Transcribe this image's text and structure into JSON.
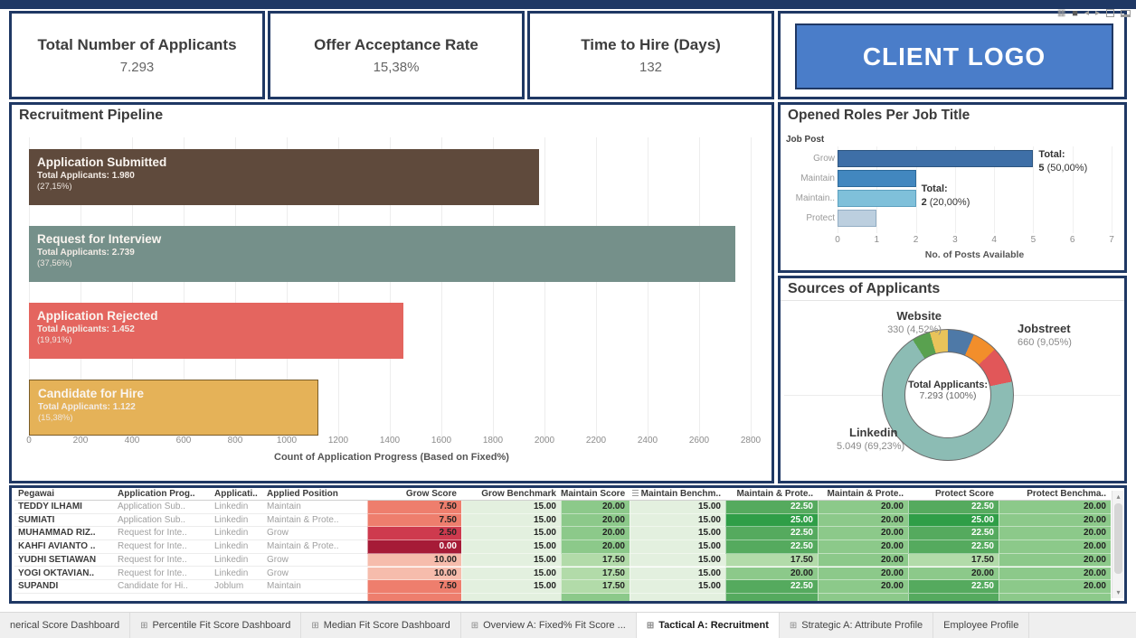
{
  "kpis": [
    {
      "label": "Total Number of Applicants",
      "value": "7.293"
    },
    {
      "label": "Offer Acceptance Rate",
      "value": "15,38%"
    },
    {
      "label": "Time to Hire (Days)",
      "value": "132"
    }
  ],
  "client_logo": {
    "text": "CLIENT LOGO",
    "bg": "#4a7dc9"
  },
  "pipeline": {
    "title": "Recruitment Pipeline",
    "axis_title": "Count of Application Progress (Based on Fixed%)",
    "axis_max": 2800,
    "axis_ticks": [
      0,
      200,
      400,
      600,
      800,
      1000,
      1200,
      1400,
      1600,
      1800,
      2000,
      2200,
      2400,
      2600,
      2800
    ],
    "stages": [
      {
        "name": "Application Submitted",
        "total": "Total Applicants: 1.980",
        "pct": "(27,15%)",
        "value": 1980,
        "color": "#5f4a3c"
      },
      {
        "name": "Request for Interview",
        "total": "Total Applicants: 2.739",
        "pct": "(37,56%)",
        "value": 2739,
        "color": "#75908a"
      },
      {
        "name": "Application Rejected",
        "total": "Total Applicants: 1.452",
        "pct": "(19,91%)",
        "value": 1452,
        "color": "#e4655f"
      },
      {
        "name": "Candidate for Hire",
        "total": "Total Applicants: 1.122",
        "pct": "(15,38%)",
        "value": 1122,
        "color": "#e5b258",
        "border": "#7a5c28"
      }
    ]
  },
  "opened_roles": {
    "title": "Opened Roles Per Job Title",
    "y_header": "Job Post",
    "axis_title": "No. of Posts Available",
    "axis_max": 7,
    "axis_ticks": [
      0,
      1,
      2,
      3,
      4,
      5,
      6,
      7
    ],
    "bars": [
      {
        "label": "Grow",
        "value": 5,
        "color": "#3e6fa7",
        "edge": "#2d5580",
        "note_line1": "Total:",
        "note_bold": "5",
        "note_rest": " (50,00%)"
      },
      {
        "label": "Maintain",
        "value": 2,
        "color": "#4287bf",
        "edge": "#2d6a9a"
      },
      {
        "label": "Maintain..",
        "value": 2,
        "color": "#7fc0da",
        "edge": "#5da0bf",
        "note_line1": "Total:",
        "note_bold": "2",
        "note_rest": " (20,00%)"
      },
      {
        "label": "Protect",
        "value": 1,
        "color": "#bccfdf",
        "edge": "#93aec4"
      }
    ]
  },
  "sources": {
    "title": "Sources of Applicants",
    "center_line1": "Total Applicants:",
    "center_line2": "7.293 (100%)",
    "slices": [
      {
        "name": "unlabeled-blue",
        "color": "#4e79a7",
        "pct": 6.5
      },
      {
        "name": "unlabeled-orange",
        "color": "#f28e2b",
        "pct": 6.2
      },
      {
        "name": "jobstreet",
        "color": "#e15759",
        "pct": 9.05
      },
      {
        "name": "linkedin",
        "color": "#8cbcb4",
        "pct": 69.23
      },
      {
        "name": "website",
        "color": "#59a14f",
        "pct": 4.52
      },
      {
        "name": "unlabeled-yellow",
        "color": "#e8c35a",
        "pct": 4.5
      }
    ],
    "labels": [
      {
        "name": "Website",
        "value": "330 (4,52%)"
      },
      {
        "name": "Jobstreet",
        "value": "660 (9,05%)"
      },
      {
        "name": "Linkedin",
        "value": "5.049 (69,23%)"
      }
    ]
  },
  "table": {
    "text_headers": [
      "Pegawai",
      "Application Prog..",
      "Applicati..",
      "Applied Position"
    ],
    "num_headers": [
      "Grow Score",
      "Grow Benchmark",
      "Maintain Score",
      "Maintain Benchm..",
      "Maintain & Prote..",
      "Maintain & Prote..",
      "Protect Score",
      "Protect Benchma.."
    ],
    "rows": [
      {
        "name": "TEDDY ILHAMI",
        "progress": "Application Sub..",
        "source": "Linkedin",
        "position": "Maintain",
        "cells": [
          {
            "v": "7.50",
            "bg": "#ee7e6d"
          },
          {
            "v": "15.00",
            "bg": "#e3f0df"
          },
          {
            "v": "20.00",
            "bg": "#8cc98a"
          },
          {
            "v": "15.00",
            "bg": "#e3f0df"
          },
          {
            "v": "22.50",
            "bg": "#55aa5e",
            "light": true
          },
          {
            "v": "20.00",
            "bg": "#8cc98a"
          },
          {
            "v": "22.50",
            "bg": "#55aa5e",
            "light": true
          },
          {
            "v": "20.00",
            "bg": "#8cc98a"
          }
        ]
      },
      {
        "name": "SUMIATI",
        "progress": "Application Sub..",
        "source": "Linkedin",
        "position": "Maintain & Prote..",
        "cells": [
          {
            "v": "7.50",
            "bg": "#ee7e6d"
          },
          {
            "v": "15.00",
            "bg": "#e3f0df"
          },
          {
            "v": "20.00",
            "bg": "#8cc98a"
          },
          {
            "v": "15.00",
            "bg": "#e3f0df"
          },
          {
            "v": "25.00",
            "bg": "#2f9e47",
            "light": true
          },
          {
            "v": "20.00",
            "bg": "#8cc98a"
          },
          {
            "v": "25.00",
            "bg": "#2f9e47",
            "light": true
          },
          {
            "v": "20.00",
            "bg": "#8cc98a"
          }
        ]
      },
      {
        "name": "MUHAMMAD RIZ..",
        "progress": "Request for Inte..",
        "source": "Linkedin",
        "position": "Grow",
        "cells": [
          {
            "v": "2.50",
            "bg": "#ce3a4e"
          },
          {
            "v": "15.00",
            "bg": "#e3f0df"
          },
          {
            "v": "20.00",
            "bg": "#8cc98a"
          },
          {
            "v": "15.00",
            "bg": "#e3f0df"
          },
          {
            "v": "22.50",
            "bg": "#55aa5e",
            "light": true
          },
          {
            "v": "20.00",
            "bg": "#8cc98a"
          },
          {
            "v": "22.50",
            "bg": "#55aa5e",
            "light": true
          },
          {
            "v": "20.00",
            "bg": "#8cc98a"
          }
        ]
      },
      {
        "name": "KAHFI AVIANTO ..",
        "progress": "Request for Inte..",
        "source": "Linkedin",
        "position": "Maintain & Prote..",
        "cells": [
          {
            "v": "0.00",
            "bg": "#a61b37",
            "light": true
          },
          {
            "v": "15.00",
            "bg": "#e3f0df"
          },
          {
            "v": "20.00",
            "bg": "#8cc98a"
          },
          {
            "v": "15.00",
            "bg": "#e3f0df"
          },
          {
            "v": "22.50",
            "bg": "#55aa5e",
            "light": true
          },
          {
            "v": "20.00",
            "bg": "#8cc98a"
          },
          {
            "v": "22.50",
            "bg": "#55aa5e",
            "light": true
          },
          {
            "v": "20.00",
            "bg": "#8cc98a"
          }
        ]
      },
      {
        "name": "YUDHI SETIAWAN",
        "progress": "Request for Inte..",
        "source": "Linkedin",
        "position": "Grow",
        "cells": [
          {
            "v": "10.00",
            "bg": "#f6bcac"
          },
          {
            "v": "15.00",
            "bg": "#e3f0df"
          },
          {
            "v": "17.50",
            "bg": "#b2dba9"
          },
          {
            "v": "15.00",
            "bg": "#e3f0df"
          },
          {
            "v": "17.50",
            "bg": "#b2dba9"
          },
          {
            "v": "20.00",
            "bg": "#8cc98a"
          },
          {
            "v": "17.50",
            "bg": "#b2dba9"
          },
          {
            "v": "20.00",
            "bg": "#8cc98a"
          }
        ]
      },
      {
        "name": "YOGI OKTAVIAN..",
        "progress": "Request for Inte..",
        "source": "Linkedin",
        "position": "Grow",
        "cells": [
          {
            "v": "10.00",
            "bg": "#f6bcac"
          },
          {
            "v": "15.00",
            "bg": "#e3f0df"
          },
          {
            "v": "17.50",
            "bg": "#b2dba9"
          },
          {
            "v": "15.00",
            "bg": "#e3f0df"
          },
          {
            "v": "20.00",
            "bg": "#8cc98a"
          },
          {
            "v": "20.00",
            "bg": "#8cc98a"
          },
          {
            "v": "20.00",
            "bg": "#8cc98a"
          },
          {
            "v": "20.00",
            "bg": "#8cc98a"
          }
        ]
      },
      {
        "name": "SUPANDI",
        "progress": "Candidate for Hi..",
        "source": "Joblum",
        "position": "Maintain",
        "cells": [
          {
            "v": "7.50",
            "bg": "#ee7e6d"
          },
          {
            "v": "15.00",
            "bg": "#e3f0df"
          },
          {
            "v": "17.50",
            "bg": "#b2dba9"
          },
          {
            "v": "15.00",
            "bg": "#e3f0df"
          },
          {
            "v": "22.50",
            "bg": "#55aa5e",
            "light": true
          },
          {
            "v": "20.00",
            "bg": "#8cc98a"
          },
          {
            "v": "22.50",
            "bg": "#55aa5e",
            "light": true
          },
          {
            "v": "20.00",
            "bg": "#8cc98a"
          }
        ]
      }
    ],
    "partial_row_bg": [
      "#ee7e6d",
      "#e3f0df",
      "#8cc98a",
      "#e3f0df",
      "#55aa5e",
      "#8cc98a",
      "#55aa5e",
      "#8cc98a"
    ]
  },
  "tabs": [
    {
      "label": "nerical Score Dashboard",
      "icon": false,
      "active": false
    },
    {
      "label": "Percentile Fit Score Dashboard",
      "icon": true,
      "active": false
    },
    {
      "label": "Median Fit Score Dashboard",
      "icon": true,
      "active": false
    },
    {
      "label": "Overview A: Fixed% Fit Score ...",
      "icon": true,
      "active": false
    },
    {
      "label": "Tactical A: Recruitment",
      "icon": true,
      "active": true
    },
    {
      "label": "Strategic A: Attribute Profile",
      "icon": true,
      "active": false
    },
    {
      "label": "Employee Profile",
      "icon": false,
      "active": false
    }
  ],
  "chart_data": [
    {
      "type": "bar",
      "orientation": "horizontal",
      "title": "Recruitment Pipeline",
      "xlabel": "Count of Application Progress (Based on Fixed%)",
      "xlim": [
        0,
        2800
      ],
      "categories": [
        "Application Submitted",
        "Request for Interview",
        "Application Rejected",
        "Candidate for Hire"
      ],
      "values": [
        1980,
        2739,
        1452,
        1122
      ],
      "percent_labels": [
        "27,15%",
        "37,56%",
        "19,91%",
        "15,38%"
      ]
    },
    {
      "type": "bar",
      "orientation": "horizontal",
      "title": "Opened Roles Per Job Title",
      "xlabel": "No. of Posts Available",
      "ylabel": "Job Post",
      "xlim": [
        0,
        7
      ],
      "categories": [
        "Grow",
        "Maintain",
        "Maintain..",
        "Protect"
      ],
      "values": [
        5,
        2,
        2,
        1
      ],
      "annotations": [
        "Total: 5 (50,00%)",
        "Total: 2 (20,00%)"
      ]
    },
    {
      "type": "pie",
      "title": "Sources of Applicants",
      "labels": [
        "Linkedin",
        "Jobstreet",
        "Website",
        "unlabeled-blue",
        "unlabeled-orange",
        "unlabeled-yellow"
      ],
      "values": [
        5049,
        660,
        330,
        474,
        452,
        328
      ],
      "percents": [
        69.23,
        9.05,
        4.52,
        6.5,
        6.2,
        4.5
      ],
      "center_label": "Total Applicants: 7.293 (100%)",
      "note": "unlabeled slice values estimated from arc angles"
    }
  ]
}
